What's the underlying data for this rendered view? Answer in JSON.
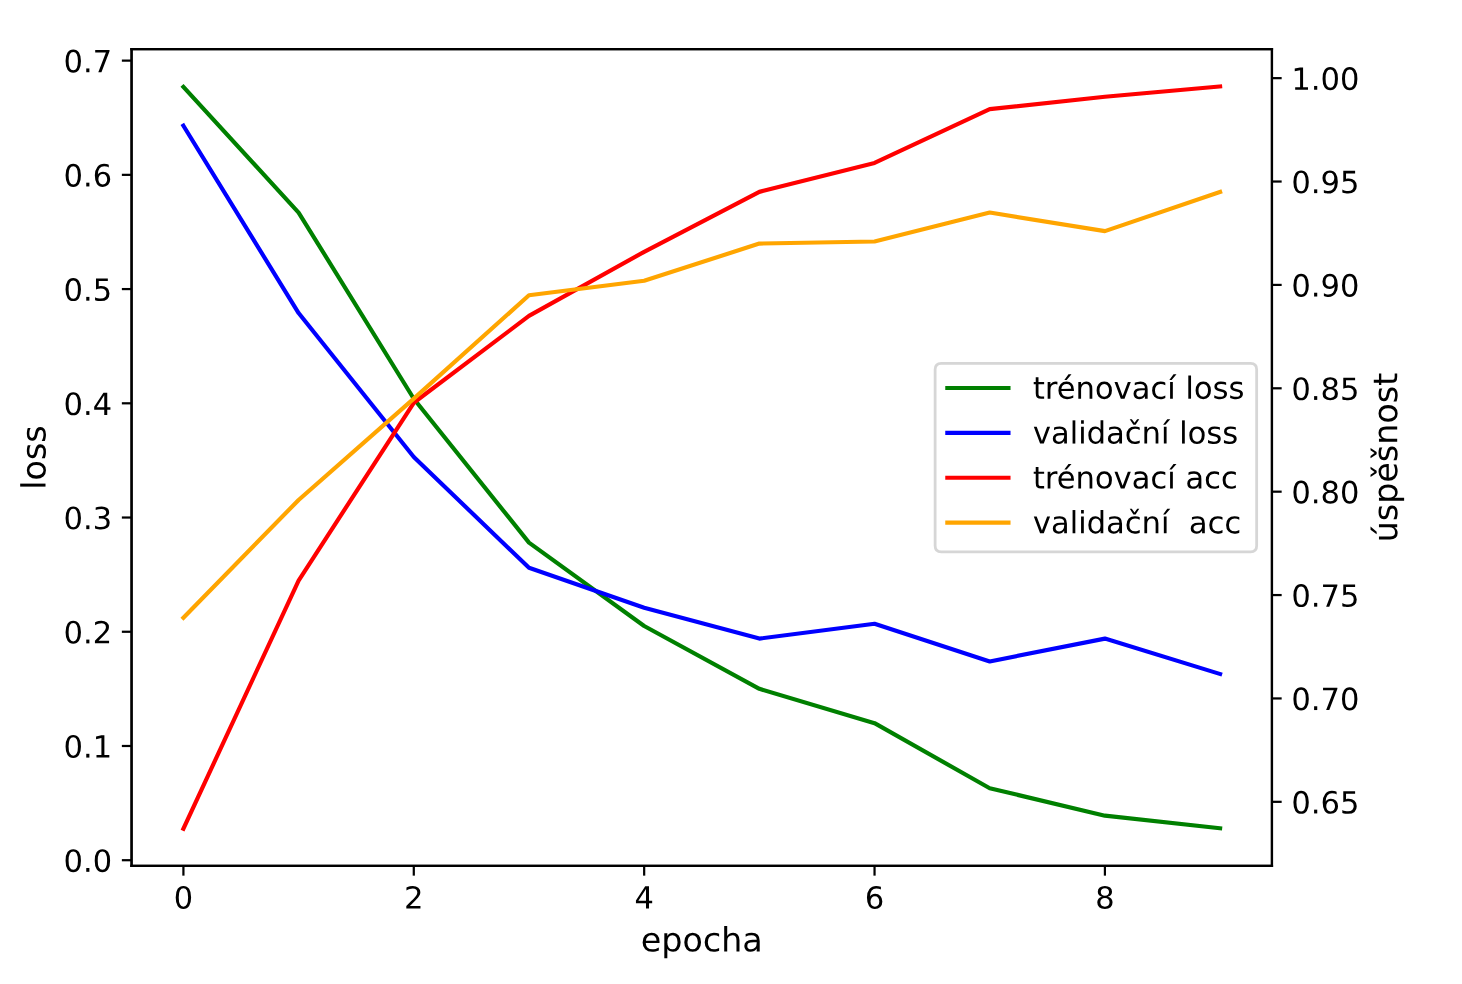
{
  "chart_data": {
    "type": "line",
    "xlabel": "epocha",
    "ylabel": "loss",
    "y2label": "úspěšnost",
    "x": [
      0,
      1,
      2,
      3,
      4,
      5,
      6,
      7,
      8,
      9
    ],
    "series": [
      {
        "name": "trénovací loss",
        "color": "#008000",
        "values": [
          0.677,
          0.567,
          0.404,
          0.278,
          0.205,
          0.15,
          0.12,
          0.063,
          0.039,
          0.028
        ]
      },
      {
        "name": "validační loss",
        "color": "#0000ff",
        "values": [
          0.643,
          0.479,
          0.353,
          0.256,
          0.221,
          0.194,
          0.207,
          0.174,
          0.194,
          0.163
        ]
      },
      {
        "name": "trénovací acc",
        "color": "#ff0000",
        "axis": "y2",
        "values": [
          0.637,
          0.757,
          0.843,
          0.885,
          0.916,
          0.945,
          0.959,
          0.985,
          0.991,
          0.996
        ]
      },
      {
        "name": "validační  acc",
        "color": "#ffa500",
        "axis": "y2",
        "values": [
          0.739,
          0.796,
          0.845,
          0.895,
          0.902,
          0.92,
          0.921,
          0.935,
          0.926,
          0.945
        ]
      }
    ],
    "xlim": [
      -0.45,
      9.45
    ],
    "xticks": [
      0,
      2,
      4,
      6,
      8
    ],
    "ylim": [
      -0.005,
      0.71
    ],
    "yticks": [
      {
        "value": 0,
        "label": "0.0"
      },
      0.1,
      0.2,
      0.3,
      0.4,
      0.5,
      0.6,
      0.7
    ],
    "y2lim": [
      0.619,
      1.014
    ],
    "y2ticks": [
      {
        "value": 0.65,
        "label": "0.65"
      },
      {
        "value": 0.7,
        "label": "0.70"
      },
      {
        "value": 0.75,
        "label": "0.75"
      },
      {
        "value": 0.8,
        "label": "0.80"
      },
      {
        "value": 0.85,
        "label": "0.85"
      },
      {
        "value": 0.9,
        "label": "0.90"
      },
      {
        "value": 0.95,
        "label": "0.95"
      },
      {
        "value": 1.0,
        "label": "1.00"
      }
    ],
    "grid": false,
    "legend": "right",
    "marker": "none",
    "line_style": "solid"
  }
}
